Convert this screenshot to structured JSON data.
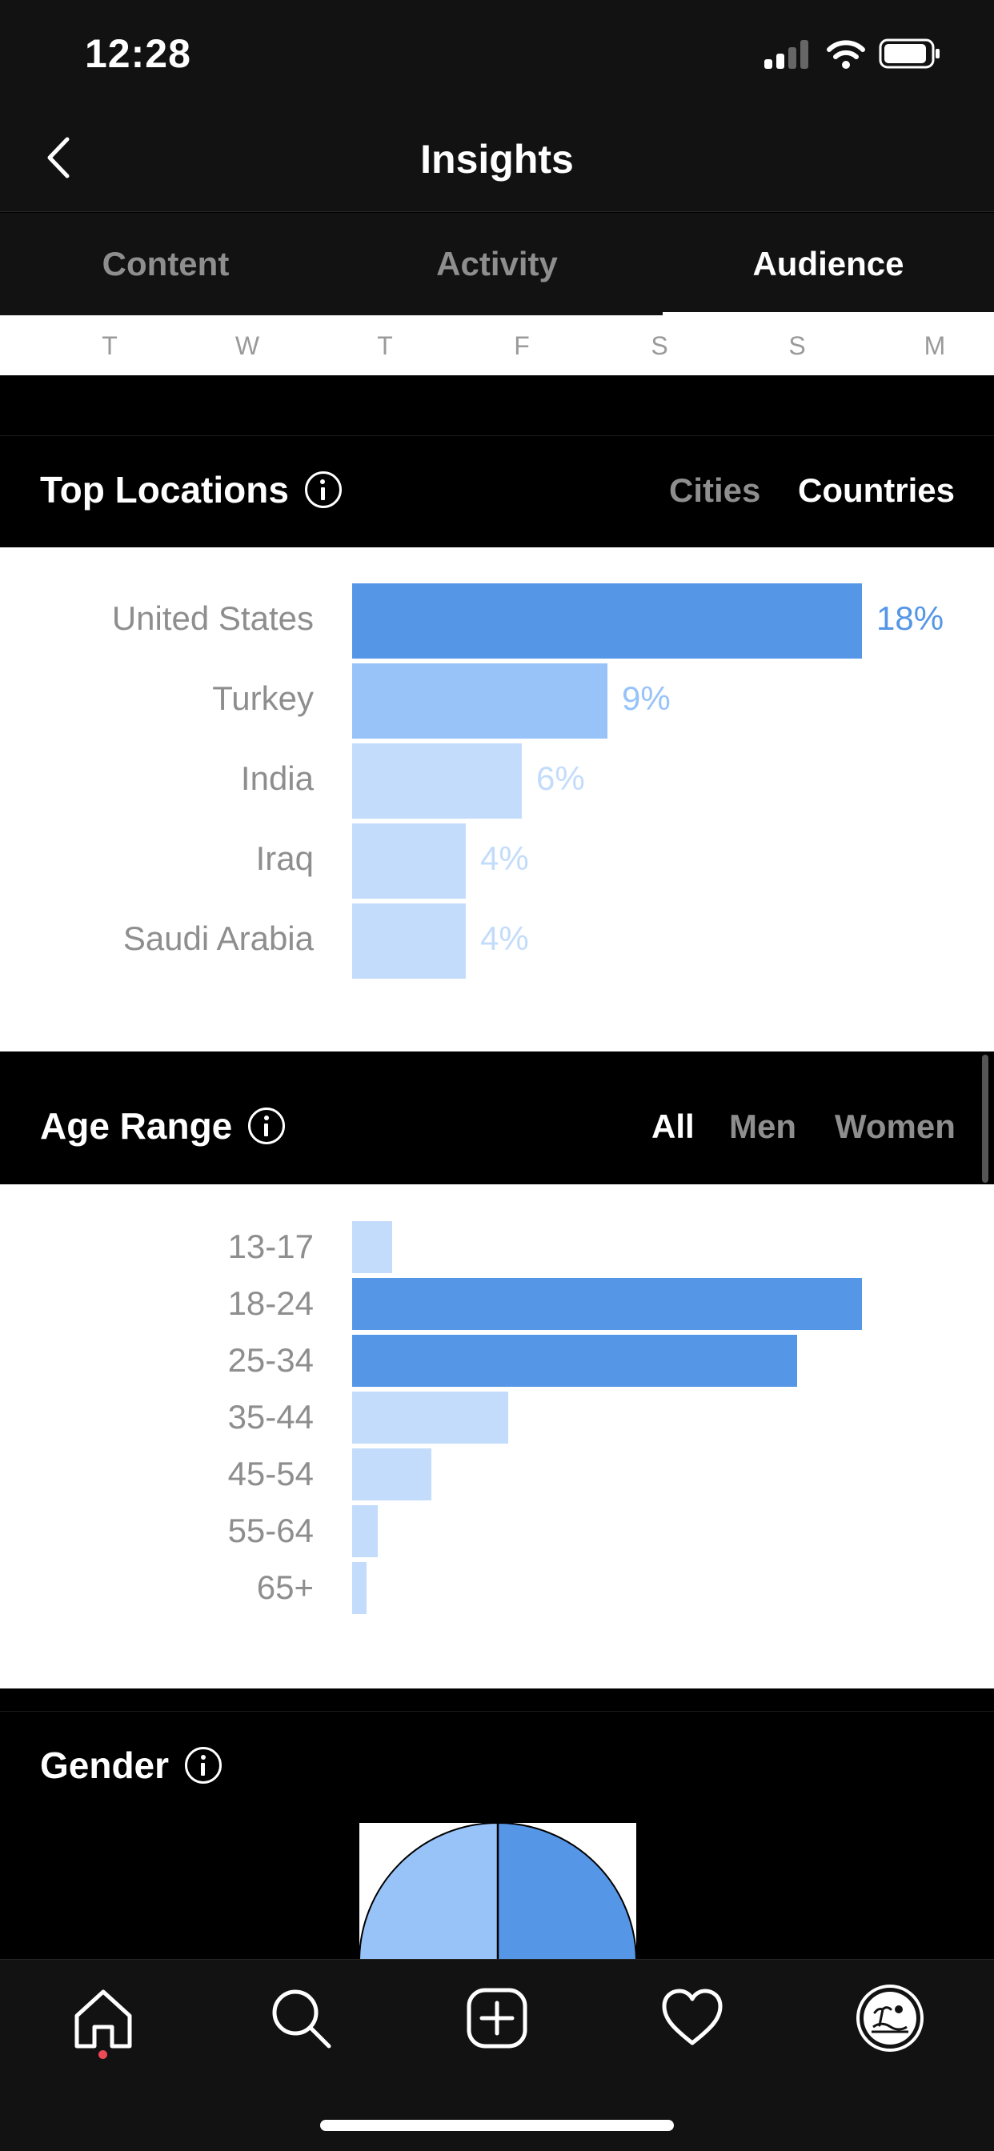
{
  "status_bar": {
    "time": "12:28"
  },
  "nav": {
    "title": "Insights"
  },
  "tabs": [
    {
      "label": "Content",
      "active": false
    },
    {
      "label": "Activity",
      "active": false
    },
    {
      "label": "Audience",
      "active": true
    }
  ],
  "days": [
    "T",
    "W",
    "T",
    "F",
    "S",
    "S",
    "M"
  ],
  "top_locations": {
    "title": "Top Locations",
    "filters": [
      {
        "label": "Cities",
        "active": false
      },
      {
        "label": "Countries",
        "active": true
      }
    ],
    "items": [
      {
        "label": "United States",
        "value": 18,
        "value_label": "18%"
      },
      {
        "label": "Turkey",
        "value": 9,
        "value_label": "9%"
      },
      {
        "label": "India",
        "value": 6,
        "value_label": "6%"
      },
      {
        "label": "Iraq",
        "value": 4,
        "value_label": "4%"
      },
      {
        "label": "Saudi Arabia",
        "value": 4,
        "value_label": "4%"
      }
    ]
  },
  "age_range": {
    "title": "Age Range",
    "filters": [
      {
        "label": "All",
        "active": true
      },
      {
        "label": "Men",
        "active": false
      },
      {
        "label": "Women",
        "active": false
      }
    ],
    "items": [
      {
        "label": "13-17",
        "value": 1.4
      },
      {
        "label": "18-24",
        "value": 18
      },
      {
        "label": "25-34",
        "value": 15.7
      },
      {
        "label": "35-44",
        "value": 5.5
      },
      {
        "label": "45-54",
        "value": 2.8
      },
      {
        "label": "55-64",
        "value": 0.9
      },
      {
        "label": "65+",
        "value": 0.5
      }
    ]
  },
  "gender": {
    "title": "Gender",
    "split": [
      50,
      50
    ]
  },
  "colors": {
    "bar_strong": "#5596e6",
    "bar_medium": "#97c3f9",
    "bar_light": "#c3dcfb",
    "gender_left": "#97c3f9",
    "gender_right": "#5596e6"
  },
  "tab_bar": {
    "items": [
      {
        "icon": "home-icon"
      },
      {
        "icon": "search-icon"
      },
      {
        "icon": "add-post-icon"
      },
      {
        "icon": "heart-icon"
      },
      {
        "icon": "profile-avatar-icon"
      }
    ]
  }
}
